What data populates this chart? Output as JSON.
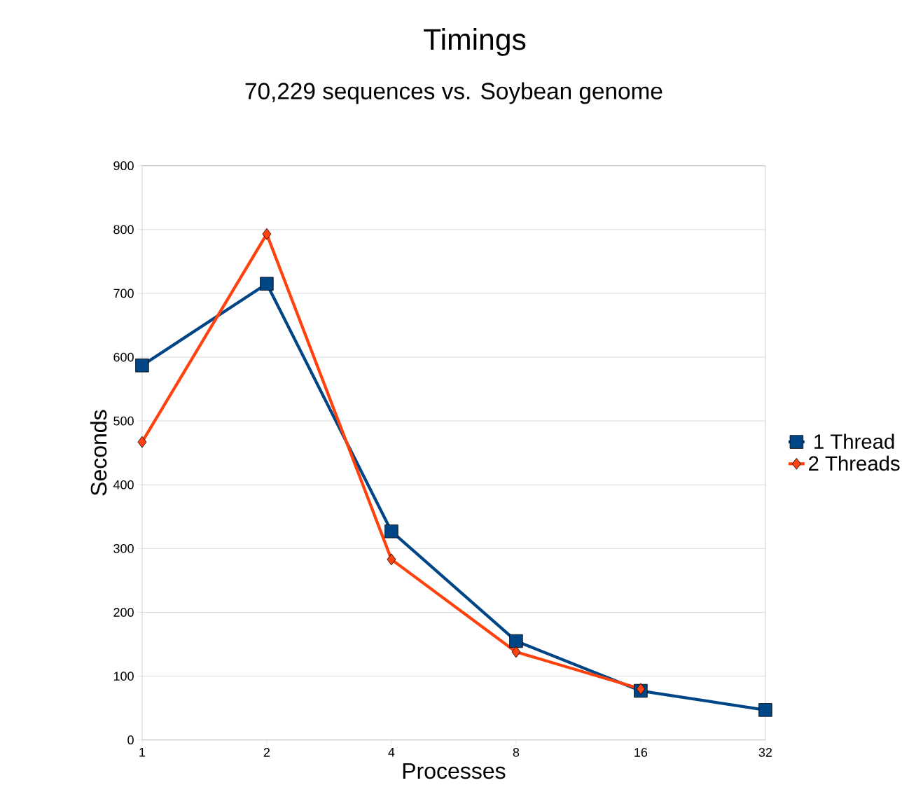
{
  "chart_data": {
    "type": "line",
    "title": "Timings",
    "subtitle": "70,229 sequences vs. Soybean genome",
    "xlabel": "Processes",
    "ylabel": "Seconds",
    "categories": [
      "1",
      "2",
      "4",
      "8",
      "16",
      "32"
    ],
    "series": [
      {
        "name": "1 Thread",
        "color": "#004586",
        "marker": "square",
        "values": [
          587,
          715,
          327,
          155,
          77,
          47
        ]
      },
      {
        "name": "2 Threads",
        "color": "#ff420e",
        "marker": "diamond",
        "values": [
          467,
          793,
          283,
          138,
          80,
          null
        ]
      }
    ],
    "ylim": [
      0,
      900
    ],
    "yticks": [
      0,
      100,
      200,
      300,
      400,
      500,
      600,
      700,
      800,
      900
    ],
    "grid": "y",
    "legend": "right",
    "line_style": "solid"
  }
}
